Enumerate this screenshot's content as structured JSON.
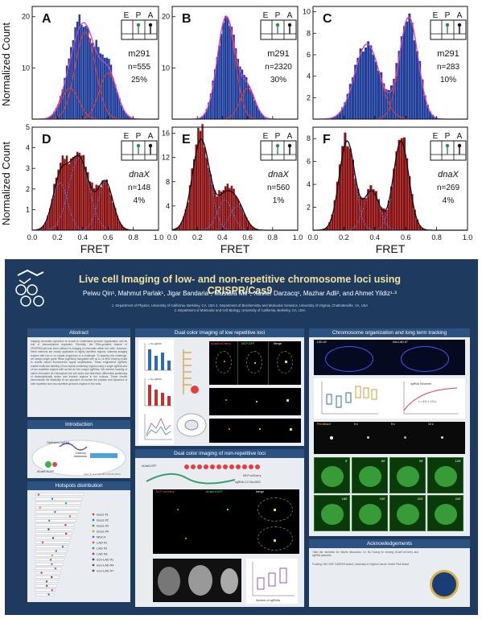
{
  "figure": {
    "y_label": "Normalized Count",
    "x_label": "FRET",
    "x_ticks": [
      "0.0",
      "0.2",
      "0.4",
      "0.6",
      "0.8",
      "1.0"
    ],
    "cartoon_letters": [
      "E",
      "P",
      "A"
    ],
    "panels": [
      {
        "letter": "A",
        "name": "m291",
        "n": "n=555",
        "pct": "25%",
        "yticks": [
          "10",
          "20"
        ],
        "ymax": 22,
        "fill": "#1f3f9a",
        "fit": "#d040d0"
      },
      {
        "letter": "B",
        "name": "m291",
        "n": "n=2320",
        "pct": "30%",
        "yticks": [
          "10",
          "20"
        ],
        "ymax": 22,
        "fill": "#1f3f9a",
        "fit": "#d040d0"
      },
      {
        "letter": "C",
        "name": "m291",
        "n": "n=283",
        "pct": "10%",
        "yticks": [
          "2",
          "4",
          "6",
          "8",
          "10"
        ],
        "ymax": 10.5,
        "fill": "#1f3f9a",
        "fit": "#d040d0"
      },
      {
        "letter": "D",
        "name": "dnaX",
        "n": "n=148",
        "pct": "4%",
        "yticks": [
          "1",
          "2",
          "3",
          "4",
          "5"
        ],
        "ymax": 5,
        "fill": "#8a1212",
        "fit": "#111111"
      },
      {
        "letter": "E",
        "name": "dnaX",
        "n": "n=560",
        "pct": "1%",
        "yticks": [
          "4",
          "8",
          "12",
          "16"
        ],
        "ymax": 17,
        "fill": "#8a1212",
        "fit": "#111111"
      },
      {
        "letter": "F",
        "name": "dnaX",
        "n": "n=269",
        "pct": "4%",
        "yticks": [
          "2",
          "4",
          "6",
          "8"
        ],
        "ymax": 9,
        "fill": "#8a1212",
        "fit": "#111111"
      }
    ]
  },
  "chart_data": [
    {
      "type": "bar",
      "title": "",
      "xlabel": "FRET",
      "ylabel": "Normalized Count",
      "xlim": [
        0,
        1
      ],
      "ylim": [
        0,
        22
      ],
      "components": [
        {
          "center": 0.42,
          "amp": 17
        },
        {
          "center": 0.6,
          "amp": 9
        },
        {
          "center": 0.3,
          "amp": 6
        }
      ]
    },
    {
      "type": "bar",
      "title": "",
      "xlabel": "FRET",
      "ylabel": "",
      "xlim": [
        0,
        1
      ],
      "ylim": [
        0,
        22
      ],
      "components": [
        {
          "center": 0.43,
          "amp": 20
        },
        {
          "center": 0.6,
          "amp": 6
        }
      ]
    },
    {
      "type": "bar",
      "title": "",
      "xlabel": "FRET",
      "ylabel": "",
      "xlim": [
        0,
        1
      ],
      "ylim": [
        0,
        10.5
      ],
      "components": [
        {
          "center": 0.35,
          "amp": 7
        },
        {
          "center": 0.62,
          "amp": 9.5
        }
      ]
    },
    {
      "type": "bar",
      "title": "",
      "xlabel": "FRET",
      "ylabel": "Normalized Count",
      "xlim": [
        0,
        1
      ],
      "ylim": [
        0,
        5
      ],
      "components": [
        {
          "center": 0.22,
          "amp": 2.3
        },
        {
          "center": 0.37,
          "amp": 3.5
        },
        {
          "center": 0.58,
          "amp": 2.3
        }
      ]
    },
    {
      "type": "bar",
      "title": "",
      "xlabel": "FRET",
      "ylabel": "",
      "xlim": [
        0,
        1
      ],
      "ylim": [
        0,
        17
      ],
      "components": [
        {
          "center": 0.23,
          "amp": 15
        },
        {
          "center": 0.42,
          "amp": 5
        },
        {
          "center": 0.52,
          "amp": 4
        }
      ]
    },
    {
      "type": "bar",
      "title": "",
      "xlabel": "FRET",
      "ylabel": "",
      "xlim": [
        0,
        1
      ],
      "ylim": [
        0,
        9
      ],
      "components": [
        {
          "center": 0.22,
          "amp": 7.8
        },
        {
          "center": 0.38,
          "amp": 3.4
        },
        {
          "center": 0.57,
          "amp": 7.8
        }
      ]
    }
  ],
  "poster": {
    "title": "Live cell Imaging of low- and non-repetitive chromosome loci using CRISPR/Cas9",
    "authors": "Peiwu Qin¹, Mahmut Parlak¹, Jigar Bandaria¹, Mustafa Mir¹, Xavier Darzacq¹, Mazhar Adli², and Ahmet Yildiz¹·³",
    "affil1": "1. Department of Physics, University of California, Berkeley, CA, USA 2. Department of Biochemistry and Molecular Genetics, University of Virginia, Charlottesville, VA, USA",
    "affil2": "3. Department of Molecular and Cell Biology, University of California, Berkeley, CA, USA",
    "sections": {
      "abstract": "Abstract",
      "intro": "Introduction",
      "hotspots": "Hotspots distribution",
      "dual_low": "Dual color imaging of low repetitive loci",
      "dual_non": "Dual color imaging of non-repetitive loci",
      "chromo": "Chromosome organization and long term tracking",
      "ack": "Acknowledgements"
    },
    "abstract_text": "Imaging chromatin dynamics is crucial to understand genome organization and its role in transcriptional regulation. Recently, the RNA-guidable feature of CRISPR/Cas9 has been utilized for imaging of chromatin within live cells. However, these methods are mostly applicable to highly repetitive regions, whereas imaging regions with low or no repeat sequences is a challenge. To address this challenge, we design single guide RNAs (sgRNAs) integrated with up to 16 MS2 binding motifs to enable robust fluorescence signal amplification. These engineered sgRNAs enable multicolor labeling of low-repeat-containing regions using a single sgRNA and of non-repetitive regions with as few as four unique sgRNAs. We achieve tracking of native chromatin loci throughout the cell cycle and determine differential positioning of transcriptionally active and inactive regions in the nucleus. These results demonstrate the feasibility of our approach to monitor the position and dynamics of both repetitive and non-repetitive genomic regions in live cells.",
    "intro_labels": {
      "sg": "Optimized sgRNA",
      "delivery": "Delivery",
      "dcas": "dCas9-EGFP",
      "cite": "Chen, B. et al. Cell 155, 1479-91 (2013)"
    },
    "legend": [
      "locus #1",
      "locus #2",
      "locus #3",
      "locus #4",
      "MUC4",
      "LAD #1",
      "LAD #2",
      "LAD #3",
      "non-LAD #1",
      "non-LAD #4",
      "non-LAD #7"
    ],
    "low_labels": {
      "merge": "Merge",
      "mch": "dCas9-mCherry",
      "mcp": "MCP-GFP",
      "no_ms2": "+ No sgRNA",
      "sg_ms2": "+ No sgRNA"
    },
    "non_labels": {
      "mch": "MCP-mCherry",
      "gfp": "dCas9-EGFP",
      "merge": "Merge",
      "cas": "dCas9-GFP",
      "mcp": "MCP-mCherry",
      "sg": "sgRNA 2.0 16x-MS2",
      "xlab": "Number of sgRNAs"
    },
    "chromo_labels": {
      "lad": "LAD #2",
      "nonlad": "non-LAD #7",
      "y1": "Normalized distance to nuclear edge",
      "ts": "sgRNA Telomere",
      "fit": "τ = 3.0 ± 1.0 s",
      "pre": "Pre-bleach",
      "t0": "0 s",
      "t5": "5 s",
      "t10": "10 s",
      "t15": "15 s",
      "tp": [
        "0'",
        "60'",
        "90'",
        "120'",
        "180'",
        "190'",
        "210'",
        "240'"
      ]
    },
    "ack_text": "Yildiz lab members for helpful discussion. Dr. Bo Huang for sharing dCas9-mCherry and sgRNA plasmids.",
    "funding": "Funding: NIH, NSF CAREER Award, University of Virginia Cancer Center Pilot Award"
  }
}
